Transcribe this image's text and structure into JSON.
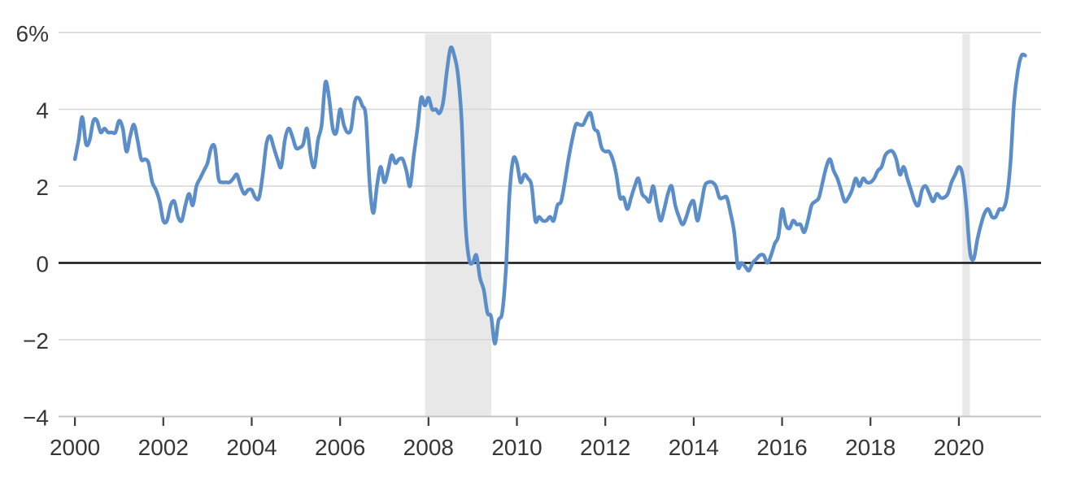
{
  "chart_data": {
    "type": "line",
    "title": "",
    "xlabel": "",
    "ylabel": "",
    "grid": true,
    "legend": "none",
    "y_axis": {
      "lim": [
        -4,
        6
      ],
      "ticks": [
        {
          "v": 6,
          "label": "6%"
        },
        {
          "v": 4,
          "label": "4"
        },
        {
          "v": 2,
          "label": "2"
        },
        {
          "v": 0,
          "label": "0"
        },
        {
          "v": -2,
          "label": "−2"
        },
        {
          "v": -4,
          "label": "−4"
        }
      ]
    },
    "x_axis": {
      "lim": [
        1999.63,
        2021.86
      ],
      "ticks": [
        {
          "v": 2000,
          "label": "2000"
        },
        {
          "v": 2002,
          "label": "2002"
        },
        {
          "v": 2004,
          "label": "2004"
        },
        {
          "v": 2006,
          "label": "2006"
        },
        {
          "v": 2008,
          "label": "2008"
        },
        {
          "v": 2010,
          "label": "2010"
        },
        {
          "v": 2012,
          "label": "2012"
        },
        {
          "v": 2014,
          "label": "2014"
        },
        {
          "v": 2016,
          "label": "2016"
        },
        {
          "v": 2018,
          "label": "2018"
        },
        {
          "v": 2020,
          "label": "2020"
        }
      ]
    },
    "zero_line": {
      "value": 0
    },
    "shaded_bands": [
      {
        "name": "recession-2007-2009",
        "from": 2007.92,
        "to": 2009.42
      },
      {
        "name": "recession-2020",
        "from": 2020.08,
        "to": 2020.25
      }
    ],
    "series": [
      {
        "name": "year-over-year-percent-change",
        "start_x": 2000.0,
        "step_x": 0.0833333,
        "values": [
          2.7,
          3.2,
          3.8,
          3.1,
          3.2,
          3.7,
          3.7,
          3.4,
          3.5,
          3.4,
          3.4,
          3.4,
          3.7,
          3.5,
          2.9,
          3.3,
          3.6,
          3.2,
          2.7,
          2.7,
          2.6,
          2.1,
          1.9,
          1.6,
          1.1,
          1.1,
          1.5,
          1.6,
          1.2,
          1.1,
          1.5,
          1.8,
          1.5,
          2.0,
          2.2,
          2.4,
          2.6,
          3.0,
          3.0,
          2.2,
          2.1,
          2.1,
          2.1,
          2.2,
          2.3,
          2.0,
          1.8,
          1.9,
          1.9,
          1.7,
          1.7,
          2.3,
          3.1,
          3.3,
          3.0,
          2.7,
          2.5,
          3.2,
          3.5,
          3.3,
          3.0,
          3.0,
          3.1,
          3.5,
          2.8,
          2.5,
          3.2,
          3.6,
          4.7,
          4.3,
          3.5,
          3.4,
          4.0,
          3.6,
          3.4,
          3.5,
          4.2,
          4.3,
          4.1,
          3.8,
          2.1,
          1.3,
          2.0,
          2.5,
          2.1,
          2.4,
          2.8,
          2.6,
          2.7,
          2.7,
          2.4,
          2.0,
          2.8,
          3.5,
          4.3,
          4.1,
          4.3,
          4.0,
          4.0,
          3.9,
          4.2,
          5.0,
          5.6,
          5.4,
          4.9,
          3.7,
          1.1,
          0.1,
          0.0,
          0.2,
          -0.4,
          -0.7,
          -1.3,
          -1.4,
          -2.1,
          -1.5,
          -1.3,
          -0.2,
          1.8,
          2.7,
          2.6,
          2.1,
          2.3,
          2.2,
          2.0,
          1.1,
          1.2,
          1.1,
          1.1,
          1.2,
          1.1,
          1.5,
          1.6,
          2.1,
          2.7,
          3.2,
          3.6,
          3.6,
          3.6,
          3.8,
          3.9,
          3.5,
          3.4,
          3.0,
          2.9,
          2.9,
          2.7,
          2.3,
          1.7,
          1.7,
          1.4,
          1.7,
          2.0,
          2.2,
          1.8,
          1.7,
          1.6,
          2.0,
          1.5,
          1.1,
          1.4,
          1.8,
          2.0,
          1.5,
          1.2,
          1.0,
          1.2,
          1.5,
          1.6,
          1.1,
          1.5,
          2.0,
          2.1,
          2.1,
          2.0,
          1.7,
          1.7,
          1.7,
          1.3,
          0.8,
          -0.1,
          0.0,
          -0.1,
          -0.2,
          0.0,
          0.1,
          0.2,
          0.2,
          0.0,
          0.2,
          0.5,
          0.7,
          1.4,
          1.0,
          0.9,
          1.1,
          1.0,
          1.0,
          0.8,
          1.1,
          1.5,
          1.6,
          1.7,
          2.1,
          2.5,
          2.7,
          2.4,
          2.2,
          1.9,
          1.6,
          1.7,
          1.9,
          2.2,
          2.0,
          2.2,
          2.1,
          2.1,
          2.2,
          2.4,
          2.5,
          2.8,
          2.9,
          2.9,
          2.7,
          2.3,
          2.5,
          2.2,
          1.9,
          1.6,
          1.5,
          1.9,
          2.0,
          1.8,
          1.6,
          1.8,
          1.7,
          1.7,
          1.8,
          2.1,
          2.3,
          2.5,
          2.3,
          1.5,
          0.3,
          0.1,
          0.6,
          1.0,
          1.3,
          1.4,
          1.2,
          1.2,
          1.4,
          1.4,
          1.7,
          2.6,
          4.2,
          5.0,
          5.4,
          5.4
        ]
      }
    ],
    "colors": {
      "line": "#5b8ec9",
      "band": "#e8e8e8",
      "grid": "#d5d5d5",
      "axis": "#c3c3c3",
      "zero": "#141414",
      "tick": "#3c3c3c",
      "label": "#363636",
      "background": "#ffffff"
    }
  }
}
